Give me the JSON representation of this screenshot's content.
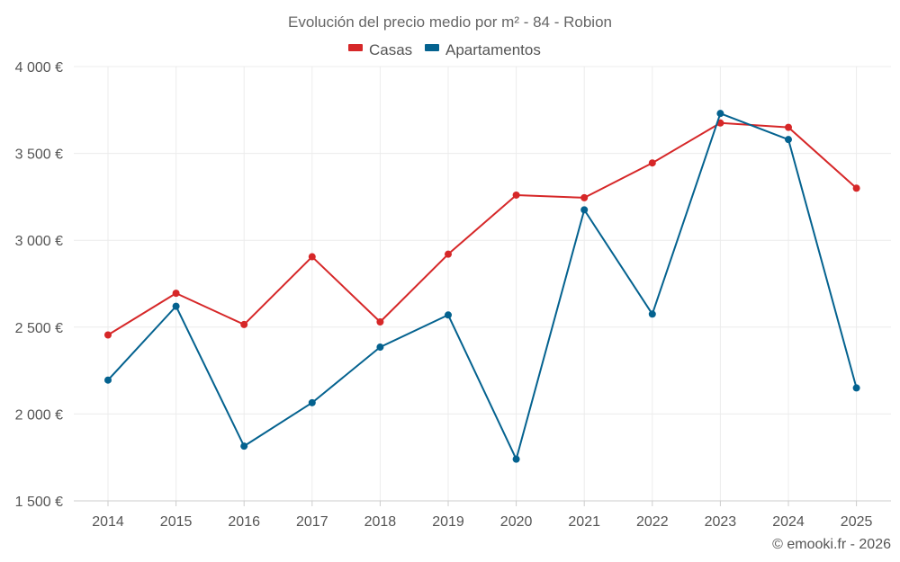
{
  "chart_data": {
    "type": "line",
    "title": "Evolución del precio medio por m² - 84 - Robion",
    "x": [
      "2014",
      "2015",
      "2016",
      "2017",
      "2018",
      "2019",
      "2020",
      "2021",
      "2022",
      "2023",
      "2024",
      "2025"
    ],
    "series": [
      {
        "name": "Casas",
        "color": "#d62728",
        "values": [
          2455,
          2695,
          2515,
          2905,
          2530,
          2920,
          3260,
          3245,
          3445,
          3675,
          3650,
          3300
        ]
      },
      {
        "name": "Apartamentos",
        "color": "#04628f",
        "values": [
          2195,
          2620,
          1815,
          2065,
          2385,
          2570,
          1740,
          3175,
          2575,
          3730,
          3580,
          2150
        ]
      }
    ],
    "ylim": [
      1500,
      4000
    ],
    "yticks": [
      1500,
      2000,
      2500,
      3000,
      3500,
      4000
    ],
    "ytick_labels": [
      "1 500 €",
      "2 000 €",
      "2 500 €",
      "3 000 €",
      "3 500 €",
      "4 000 €"
    ],
    "xlabel": "",
    "ylabel": "",
    "grid": true,
    "legend_position": "top-center",
    "credit": "© emooki.fr - 2026"
  }
}
